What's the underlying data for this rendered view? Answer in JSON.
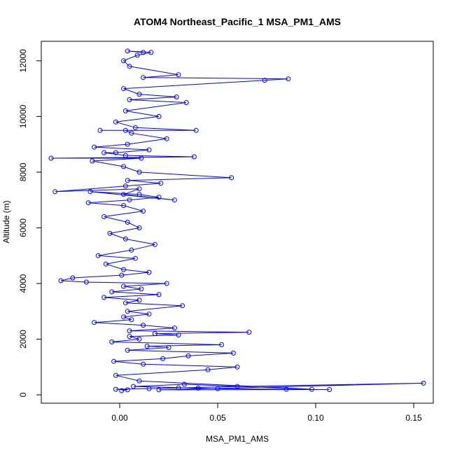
{
  "chart_data": {
    "type": "scatter",
    "title": "ATOM4 Northeast_Pacific_1 MSA_PM1_AMS",
    "xlabel": "MSA_PM1_AMS",
    "ylabel": "Altitude (m)",
    "xlim": [
      -0.04,
      0.16
    ],
    "ylim": [
      -300,
      12700
    ],
    "x_ticks": [
      0.0,
      0.05,
      0.1,
      0.15
    ],
    "x_tick_labels": [
      "0.00",
      "0.05",
      "0.10",
      "0.15"
    ],
    "y_ticks": [
      0,
      2000,
      4000,
      6000,
      8000,
      10000,
      12000
    ],
    "y_tick_labels": [
      "0",
      "2000",
      "4000",
      "6000",
      "8000",
      "10000",
      "12000"
    ],
    "grid": false,
    "legend": "none",
    "series": [
      {
        "marker": "open-circle",
        "connect_points": true,
        "color": "#0000ff",
        "x": [
          0.001,
          0.004,
          -0.002,
          0.015,
          0.03,
          0.06,
          0.155,
          0.02,
          0.107,
          0.085,
          0.05,
          0.04,
          0.007,
          0.033,
          0.098,
          0.01,
          -0.002,
          0.045,
          0.06,
          0.012,
          -0.003,
          0.022,
          0.035,
          0.058,
          0.004,
          0.025,
          0.014,
          0.052,
          -0.004,
          0.01,
          0.005,
          0.03,
          0.018,
          0.066,
          0.005,
          0.028,
          0.012,
          -0.013,
          0.006,
          0.002,
          0.015,
          0.004,
          0.032,
          0.003,
          0.01,
          -0.008,
          0.02,
          -0.004,
          0.011,
          0.002,
          0.024,
          -0.017,
          -0.03,
          -0.024,
          0.001,
          0.015,
          0.002,
          -0.007,
          0.008,
          -0.011,
          0.006,
          0.018,
          0.003,
          -0.005,
          0.01,
          0.004,
          -0.008,
          0.012,
          0.002,
          -0.016,
          0.005,
          0.02,
          0.01,
          -0.015,
          0.028,
          0.002,
          0.01,
          -0.033,
          0.003,
          0.021,
          0.004,
          0.057,
          0.01,
          0.002,
          -0.014,
          0.011,
          -0.035,
          0.038,
          0.003,
          -0.008,
          -0.002,
          0.015,
          -0.013,
          0.004,
          0.024,
          0.006,
          0.003,
          -0.01,
          0.039,
          0.008,
          -0.002,
          0.02,
          0.003,
          0.034,
          0.005,
          0.029,
          0.01,
          0.002,
          0.074,
          0.086,
          0.012,
          0.03,
          0.005,
          0.002,
          0.009,
          0.016,
          0.004,
          0.012
        ],
        "y": [
          150,
          180,
          200,
          220,
          250,
          300,
          420,
          180,
          190,
          200,
          220,
          240,
          300,
          380,
          200,
          500,
          700,
          900,
          1000,
          1100,
          1200,
          1300,
          1400,
          1500,
          1600,
          1700,
          1750,
          1800,
          1900,
          2000,
          2100,
          2150,
          2200,
          2250,
          2300,
          2400,
          2500,
          2600,
          2700,
          2800,
          2900,
          3000,
          3200,
          3300,
          3400,
          3500,
          3600,
          3700,
          3800,
          3900,
          4000,
          4050,
          4100,
          4200,
          4300,
          4400,
          4500,
          4700,
          4900,
          5000,
          5200,
          5400,
          5600,
          5800,
          6000,
          6200,
          6400,
          6600,
          6800,
          6900,
          7000,
          7100,
          7200,
          7300,
          7000,
          7200,
          7400,
          7300,
          7500,
          7600,
          7700,
          7800,
          8000,
          8200,
          8400,
          8500,
          8500,
          8550,
          8600,
          8700,
          8700,
          8800,
          8900,
          9000,
          9200,
          9400,
          9500,
          9500,
          9500,
          9600,
          9800,
          10000,
          10200,
          10500,
          10600,
          10700,
          10800,
          11000,
          11300,
          11350,
          11400,
          11500,
          11800,
          12000,
          12200,
          12300,
          12350,
          12300
        ]
      }
    ]
  }
}
